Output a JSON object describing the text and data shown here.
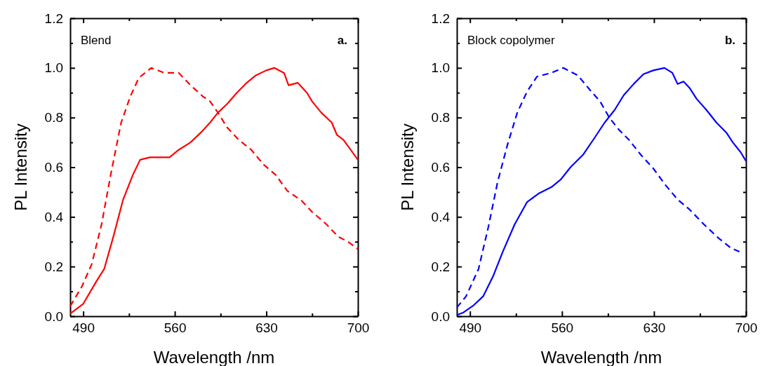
{
  "chart_data": [
    {
      "type": "line",
      "xlabel": "Wavelength /nm",
      "ylabel": "PL Intensity",
      "annotations": [
        "Blend",
        "a."
      ],
      "xlim": [
        480,
        700
      ],
      "ylim": [
        0,
        1.2
      ],
      "xticks": [
        490,
        {
          "value": 525,
          "label": null
        },
        560,
        {
          "value": 595,
          "label": null
        },
        630,
        {
          "value": 665,
          "label": null
        },
        700
      ],
      "yticks": [
        {
          "value": 0,
          "label": "0.0"
        },
        {
          "value": 0.1,
          "label": null
        },
        0.2,
        {
          "value": 0.3,
          "label": null
        },
        0.4,
        {
          "value": 0.5,
          "label": null
        },
        0.6,
        {
          "value": 0.7,
          "label": null
        },
        0.8,
        {
          "value": 0.9,
          "label": null
        },
        {
          "value": 1,
          "label": "1.0"
        },
        {
          "value": 1.1,
          "label": null
        },
        1.2
      ],
      "grid": false,
      "series": [
        {
          "color": "#ff0000",
          "line_style": "solid",
          "x": [
            480,
            490,
            500,
            506,
            513,
            520.5,
            528,
            533.5,
            541,
            548,
            556,
            563,
            572,
            580,
            587,
            593,
            600,
            607.5,
            615,
            622,
            630,
            636,
            643.5,
            647,
            654,
            661,
            665,
            672,
            680,
            684,
            689,
            694.5,
            700
          ],
          "values": [
            0.01,
            0.05,
            0.14,
            0.19,
            0.32,
            0.47,
            0.57,
            0.63,
            0.64,
            0.64,
            0.64,
            0.67,
            0.7,
            0.74,
            0.78,
            0.82,
            0.855,
            0.9,
            0.94,
            0.97,
            0.99,
            1.0,
            0.98,
            0.93,
            0.94,
            0.9,
            0.865,
            0.82,
            0.78,
            0.73,
            0.71,
            0.67,
            0.63
          ]
        },
        {
          "color": "#ff0000",
          "line_style": "dashed",
          "x": [
            480,
            489,
            496.5,
            504,
            511,
            519,
            526,
            532.5,
            542,
            552,
            563,
            572,
            581.5,
            587,
            593,
            600,
            609,
            618.5,
            628,
            637,
            646,
            657,
            665,
            676,
            685,
            692.5,
            700
          ],
          "values": [
            0.04,
            0.12,
            0.21,
            0.37,
            0.57,
            0.78,
            0.885,
            0.96,
            1.0,
            0.98,
            0.98,
            0.93,
            0.885,
            0.865,
            0.82,
            0.76,
            0.71,
            0.67,
            0.61,
            0.57,
            0.505,
            0.465,
            0.42,
            0.37,
            0.32,
            0.3,
            0.27
          ]
        }
      ]
    },
    {
      "type": "line",
      "xlabel": "Wavelength /nm",
      "ylabel": "PL Intensity",
      "annotations": [
        "Block copolymer",
        "b."
      ],
      "xlim": [
        480,
        700
      ],
      "ylim": [
        0,
        1.2
      ],
      "xticks": [
        490,
        {
          "value": 525,
          "label": null
        },
        560,
        {
          "value": 595,
          "label": null
        },
        630,
        {
          "value": 665,
          "label": null
        },
        700
      ],
      "yticks": [
        {
          "value": 0,
          "label": "0.0"
        },
        {
          "value": 0.1,
          "label": null
        },
        0.2,
        {
          "value": 0.3,
          "label": null
        },
        0.4,
        {
          "value": 0.5,
          "label": null
        },
        0.6,
        {
          "value": 0.7,
          "label": null
        },
        0.8,
        {
          "value": 0.9,
          "label": null
        },
        {
          "value": 1,
          "label": "1.0"
        },
        {
          "value": 1.1,
          "label": null
        },
        1.2
      ],
      "grid": false,
      "series": [
        {
          "color": "#0000ff",
          "line_style": "solid",
          "x": [
            480,
            485,
            493,
            500,
            507.5,
            515,
            524,
            533.5,
            542.5,
            552,
            559,
            566.5,
            576,
            585,
            592.5,
            600,
            607,
            614.5,
            622,
            629.5,
            638,
            644,
            648,
            652.5,
            657,
            662.5,
            670,
            677.5,
            685,
            690,
            696,
            700
          ],
          "values": [
            0.005,
            0.015,
            0.045,
            0.08,
            0.16,
            0.26,
            0.37,
            0.46,
            0.495,
            0.52,
            0.55,
            0.6,
            0.65,
            0.72,
            0.78,
            0.83,
            0.89,
            0.935,
            0.975,
            0.99,
            1.0,
            0.98,
            0.935,
            0.945,
            0.92,
            0.875,
            0.83,
            0.78,
            0.74,
            0.7,
            0.66,
            0.625
          ]
        },
        {
          "color": "#0000ff",
          "line_style": "dashed",
          "x": [
            480,
            487,
            496.5,
            504,
            511,
            518.5,
            526,
            533.5,
            541,
            552,
            561,
            572,
            581.5,
            589,
            596,
            603.5,
            611,
            620,
            629.5,
            638.5,
            648,
            657,
            668,
            679,
            688.5,
            695
          ],
          "values": [
            0.035,
            0.08,
            0.19,
            0.36,
            0.54,
            0.69,
            0.82,
            0.905,
            0.965,
            0.98,
            1.0,
            0.97,
            0.91,
            0.865,
            0.8,
            0.75,
            0.71,
            0.65,
            0.595,
            0.53,
            0.47,
            0.43,
            0.37,
            0.315,
            0.275,
            0.26
          ]
        }
      ]
    }
  ]
}
